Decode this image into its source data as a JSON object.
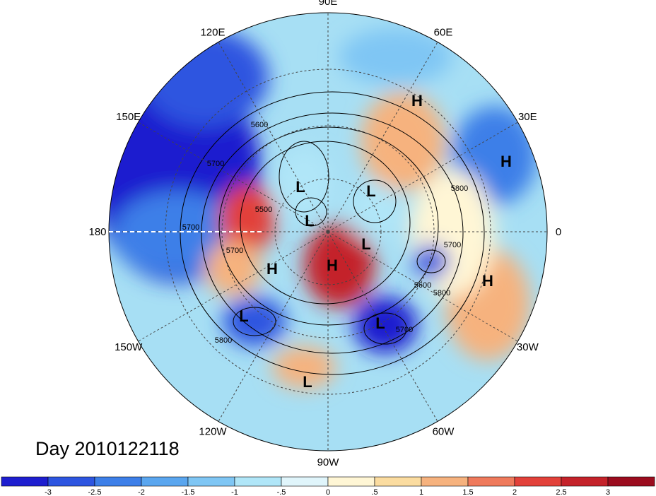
{
  "title": "Day 2010122118",
  "longitude_labels": [
    "90E",
    "60E",
    "30E",
    "0",
    "30W",
    "60W",
    "90W",
    "120W",
    "150W",
    "180",
    "150E",
    "120E"
  ],
  "pressure_centers": [
    {
      "label": "H",
      "lon": 30
    },
    {
      "label": "L",
      "lon": 120
    },
    {
      "label": "L",
      "lon": 135
    },
    {
      "label": "L",
      "lon": 60
    },
    {
      "label": "H",
      "lon": 95
    },
    {
      "label": "L",
      "lon": 0
    },
    {
      "label": "H",
      "lon": 235
    },
    {
      "label": "L",
      "lon": 200
    },
    {
      "label": "L",
      "lon": 260
    },
    {
      "label": "L",
      "lon": 225
    },
    {
      "label": "H",
      "lon": 335
    },
    {
      "label": "H",
      "lon": 270
    }
  ],
  "contour_labels": [
    "5600",
    "5700",
    "5500",
    "5700",
    "5700",
    "5800",
    "5700",
    "5600",
    "5800",
    "5700",
    "5800"
  ],
  "colorbar": {
    "ticks": [
      "-3",
      "-2.5",
      "-2",
      "-1.5",
      "-1",
      "-.5",
      "0",
      ".5",
      "1",
      "1.5",
      "2",
      "2.5",
      "3"
    ],
    "colors": [
      "#1e1ecf",
      "#2d55e0",
      "#3d7fe8",
      "#5aa6ef",
      "#7fc6f4",
      "#b0e6f8",
      "#e0f5fb",
      "#fff6d5",
      "#fbdca0",
      "#f6b27e",
      "#ef7a5c",
      "#e2413a",
      "#c4222a",
      "#9b0c1e"
    ]
  }
}
